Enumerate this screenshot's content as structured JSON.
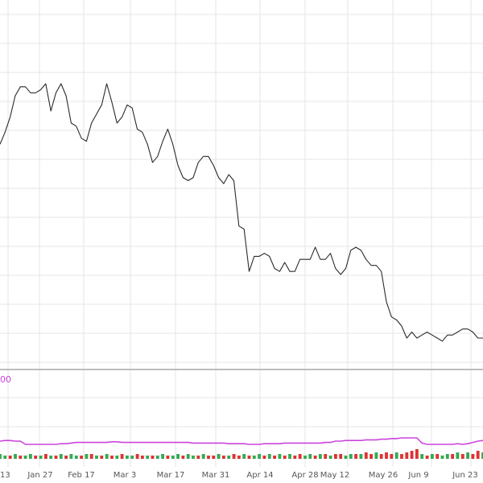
{
  "chart_data": {
    "type": "line",
    "title": "",
    "xlabel": "",
    "ylabel": "",
    "x_tick_labels": [
      "13",
      "Jan 27",
      "Feb 17",
      "Mar 3",
      "Mar 17",
      "Mar 31",
      "Apr 14",
      "Apr 28",
      "May 12",
      "May 26",
      "Jun 9",
      "Jun 23"
    ],
    "indicator_label": "00",
    "colors": {
      "price": "#2b2b2b",
      "indicator": "#cc44dd",
      "volume_up": "#33aa55",
      "volume_down": "#dd3333"
    },
    "grid": true,
    "series": [
      {
        "values": [
          72,
          76,
          81,
          88,
          91,
          91,
          89,
          89,
          90,
          92,
          83,
          89,
          92,
          88,
          79,
          78,
          74,
          73,
          79,
          82,
          85,
          92,
          86,
          79,
          81,
          85,
          84,
          77,
          76,
          72,
          66,
          68,
          73,
          77,
          72,
          65,
          61,
          60,
          61,
          66,
          68,
          68,
          65,
          61,
          59,
          62,
          60,
          45,
          44,
          30,
          35,
          35,
          36,
          35,
          31,
          30,
          33,
          30,
          30,
          34,
          34,
          34,
          38,
          34,
          34,
          36,
          31,
          29,
          31,
          37,
          38,
          37,
          34,
          32,
          32,
          30,
          20,
          15,
          14,
          12,
          8,
          10,
          8,
          9,
          10,
          9,
          8,
          7,
          9,
          9,
          10,
          11,
          11,
          10,
          8,
          8
        ]
      },
      {
        "values": [
          6.5,
          6.6,
          6.6,
          6.5,
          6.5,
          6.0,
          6.0,
          6.0,
          6.0,
          6.0,
          6.0,
          6.0,
          6.1,
          6.1,
          6.2,
          6.3,
          6.3,
          6.3,
          6.3,
          6.3,
          6.3,
          6.3,
          6.4,
          6.4,
          6.3,
          6.3,
          6.3,
          6.3,
          6.3,
          6.3,
          6.3,
          6.3,
          6.3,
          6.3,
          6.3,
          6.3,
          6.3,
          6.3,
          6.2,
          6.2,
          6.2,
          6.2,
          6.2,
          6.2,
          6.2,
          6.1,
          6.1,
          6.1,
          6.1,
          6.0,
          6.0,
          6.0,
          6.1,
          6.1,
          6.1,
          6.1,
          6.2,
          6.2,
          6.2,
          6.2,
          6.2,
          6.2,
          6.2,
          6.2,
          6.3,
          6.3,
          6.5,
          6.5,
          6.6,
          6.6,
          6.6,
          6.6,
          6.7,
          6.7,
          6.7,
          6.8,
          6.8,
          6.9,
          6.9,
          7.0,
          7.0,
          7.0,
          7.0,
          6.2,
          6.0,
          6.0,
          6.0,
          6.0,
          6.0,
          6.0,
          6.1,
          6.0,
          6.1,
          6.3,
          6.5,
          6.6
        ]
      },
      {
        "values": [
          3,
          2,
          2,
          3,
          2,
          2,
          3,
          2,
          2,
          3,
          2,
          2,
          3,
          2,
          3,
          2,
          2,
          3,
          3,
          2,
          2,
          3,
          2,
          2,
          3,
          2,
          2,
          3,
          2,
          2,
          2,
          2,
          3,
          2,
          2,
          3,
          2,
          3,
          2,
          2,
          3,
          2,
          2,
          3,
          2,
          2,
          3,
          2,
          3,
          2,
          2,
          3,
          2,
          3,
          2,
          3,
          2,
          3,
          2,
          3,
          2,
          3,
          2,
          3,
          3,
          2,
          3,
          3,
          2,
          3,
          3,
          3,
          4,
          3,
          4,
          3,
          4,
          3,
          4,
          3,
          4,
          5,
          6,
          3,
          2,
          3,
          3,
          2,
          3,
          3,
          4,
          3,
          4,
          3,
          5,
          4
        ],
        "up": [
          1,
          1,
          0,
          1,
          0,
          1,
          1,
          0,
          1,
          0,
          1,
          0,
          1,
          0,
          1,
          1,
          0,
          1,
          0,
          1,
          0,
          1,
          0,
          1,
          0,
          1,
          1,
          0,
          0,
          1,
          0,
          1,
          1,
          0,
          1,
          1,
          0,
          1,
          1,
          0,
          1,
          0,
          0,
          1,
          0,
          1,
          0,
          0,
          1,
          0,
          1,
          1,
          0,
          1,
          0,
          1,
          0,
          1,
          0,
          0,
          1,
          1,
          0,
          1,
          0,
          1,
          0,
          0,
          1,
          1,
          0,
          1,
          0,
          0,
          1,
          0,
          0,
          0,
          1,
          0,
          0,
          0,
          0,
          1,
          0,
          1,
          0,
          1,
          1,
          0,
          1,
          0,
          1,
          0,
          0,
          1
        ]
      }
    ]
  }
}
